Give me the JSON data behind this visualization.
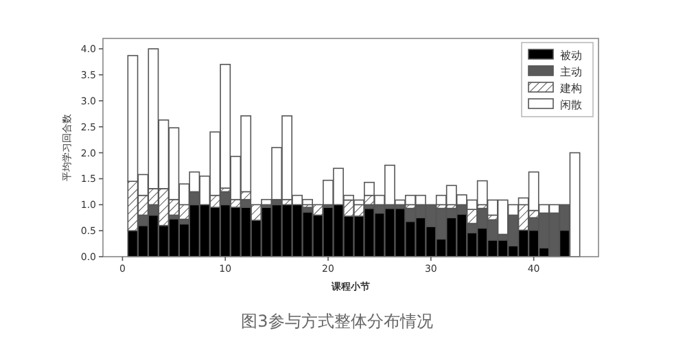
{
  "chart_data": {
    "type": "bar",
    "stacked": true,
    "xlabel": "课程小节",
    "ylabel": "平均学习回合数",
    "annotations": [
      "图3参与方式整体分布情况"
    ],
    "x": [
      1,
      2,
      3,
      4,
      5,
      6,
      7,
      8,
      9,
      10,
      11,
      12,
      13,
      14,
      15,
      16,
      17,
      18,
      19,
      20,
      21,
      22,
      23,
      24,
      25,
      26,
      27,
      28,
      29,
      30,
      31,
      32,
      33,
      34,
      35,
      36,
      37,
      38,
      39,
      40,
      41,
      42,
      43,
      44
    ],
    "xlim": [
      -1.9,
      46.3
    ],
    "xticks": [
      0,
      10,
      20,
      30,
      40
    ],
    "ylim": [
      0,
      4.2
    ],
    "yticks": [
      {
        "value": 0,
        "label": "0.0"
      },
      {
        "value": 0.5,
        "label": "0.5"
      },
      {
        "value": 1,
        "label": "1.0"
      },
      {
        "value": 1.5,
        "label": "1.5"
      },
      {
        "value": 2,
        "label": "2.0"
      },
      {
        "value": 2.5,
        "label": "2.5"
      },
      {
        "value": 3,
        "label": "3.0"
      },
      {
        "value": 3.5,
        "label": "3.5"
      },
      {
        "value": 4,
        "label": "4.0"
      }
    ],
    "legend": "top right",
    "series": [
      {
        "name": "被动",
        "color": "#000000",
        "values": [
          0.5,
          0.6,
          0.8,
          0.6,
          0.73,
          0.63,
          1.0,
          1.0,
          0.95,
          1.0,
          0.95,
          0.95,
          0.7,
          0.95,
          1.0,
          1.0,
          1.0,
          0.86,
          0.8,
          0.95,
          1.0,
          0.78,
          0.78,
          0.93,
          0.84,
          0.93,
          0.93,
          0.68,
          0.75,
          0.58,
          0.34,
          0.75,
          0.82,
          0.46,
          0.55,
          0.32,
          0.32,
          0.21,
          0.51,
          0.51,
          0.17,
          0,
          0.51,
          0
        ]
      },
      {
        "name": "主动",
        "color": "#5a5a5a",
        "values": [
          0,
          0.2,
          0.2,
          0,
          0.07,
          0.09,
          0.25,
          0,
          0,
          0.25,
          0,
          0.15,
          0,
          0.05,
          0.1,
          0,
          0,
          0.09,
          0,
          0.05,
          0,
          0,
          0,
          0.07,
          0.16,
          0.07,
          0.07,
          0.25,
          0.25,
          0.42,
          0.59,
          0.18,
          0.18,
          0.18,
          0.38,
          0.39,
          0.11,
          0.59,
          0,
          0.24,
          0.67,
          0.84,
          0.49,
          0
        ]
      },
      {
        "name": "建构",
        "color": "#555555",
        "values": [
          0.95,
          0.38,
          0.31,
          0.71,
          0.3,
          0.28,
          0,
          0,
          0.23,
          0.07,
          0.15,
          0.15,
          0.3,
          0,
          0,
          0.1,
          0,
          0.05,
          0.2,
          0,
          0,
          0.31,
          0.22,
          0.18,
          0,
          0,
          0,
          0.07,
          0,
          0,
          0.07,
          0.07,
          0,
          0.27,
          0.07,
          0.09,
          0,
          0,
          0.49,
          0.14,
          0,
          0,
          0,
          0
        ]
      },
      {
        "name": "闲散",
        "color": "#ffffff",
        "values": [
          2.42,
          0.4,
          2.69,
          1.32,
          1.38,
          0.4,
          0.38,
          0.55,
          1.22,
          2.38,
          0.83,
          1.46,
          0,
          0.1,
          1.0,
          1.61,
          0.18,
          0.1,
          0,
          0.47,
          0.7,
          0.09,
          0.09,
          0.25,
          0.18,
          0.76,
          0.09,
          0.18,
          0.18,
          0,
          0.18,
          0.37,
          0.19,
          0.18,
          0.46,
          0.29,
          0.66,
          0.2,
          0.13,
          0.74,
          0.16,
          0.16,
          0,
          2.0
        ]
      }
    ]
  }
}
